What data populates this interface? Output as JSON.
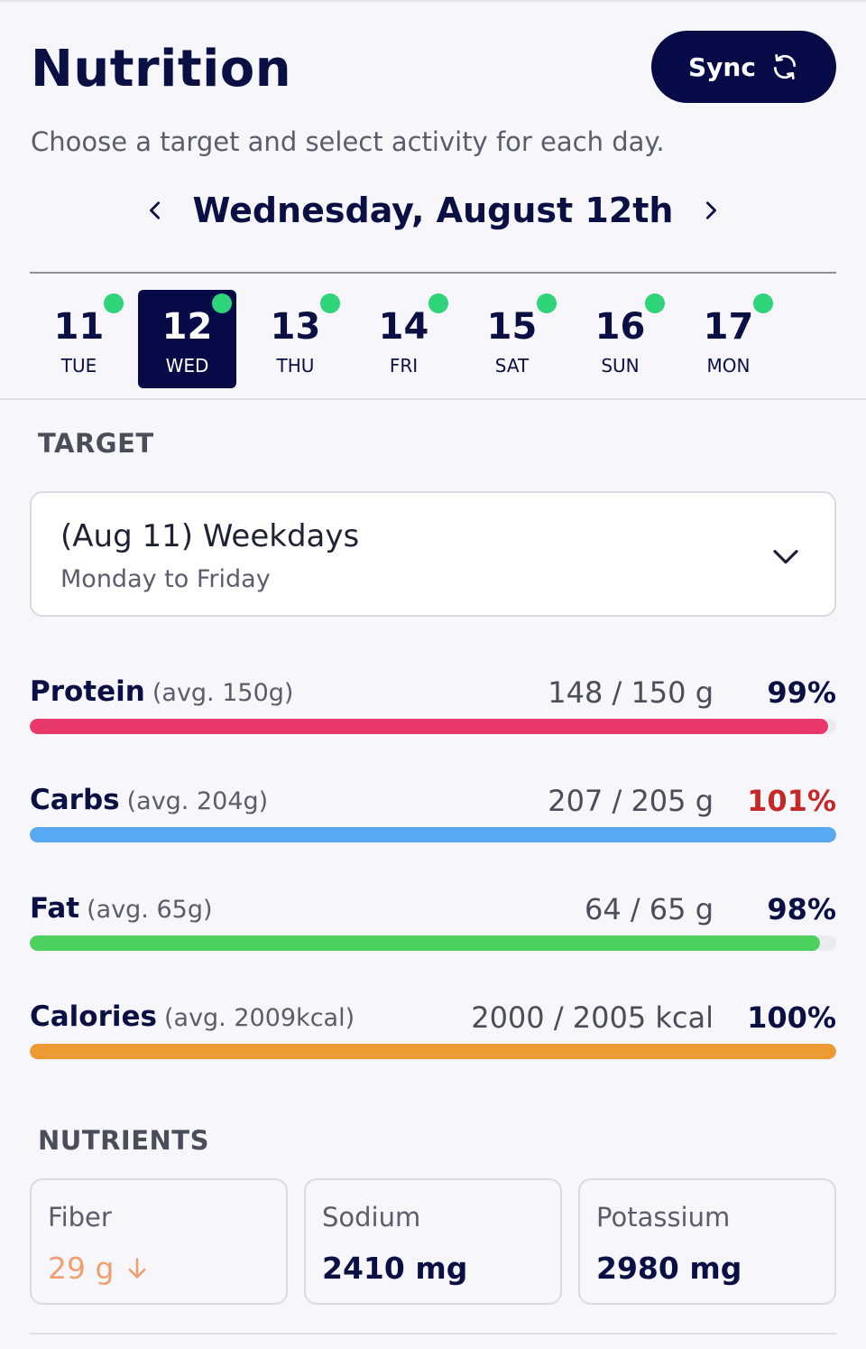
{
  "header": {
    "title": "Nutrition",
    "sync_label": "Sync",
    "subtitle": "Choose a target and select activity for each day."
  },
  "date_nav": {
    "current_date": "Wednesday, August 12th"
  },
  "days": [
    {
      "num": "11",
      "name": "TUE",
      "selected": false,
      "dot": true
    },
    {
      "num": "12",
      "name": "WED",
      "selected": true,
      "dot": true
    },
    {
      "num": "13",
      "name": "THU",
      "selected": false,
      "dot": true
    },
    {
      "num": "14",
      "name": "FRI",
      "selected": false,
      "dot": true
    },
    {
      "num": "15",
      "name": "SAT",
      "selected": false,
      "dot": true
    },
    {
      "num": "16",
      "name": "SUN",
      "selected": false,
      "dot": true
    },
    {
      "num": "17",
      "name": "MON",
      "selected": false,
      "dot": true
    }
  ],
  "target": {
    "section_label": "TARGET",
    "selected_title": "(Aug 11) Weekdays",
    "selected_subtitle": "Monday to Friday"
  },
  "macros": [
    {
      "name": "Protein",
      "avg": "(avg. 150g)",
      "amount": "148 / 150 g",
      "percent": "99%",
      "progress": 0.99,
      "color": "#e8396a",
      "over": false
    },
    {
      "name": "Carbs",
      "avg": "(avg. 204g)",
      "amount": "207 / 205 g",
      "percent": "101%",
      "progress": 1.0,
      "color": "#58a8f2",
      "over": true
    },
    {
      "name": "Fat",
      "avg": "(avg. 65g)",
      "amount": "64 / 65 g",
      "percent": "98%",
      "progress": 0.98,
      "color": "#4cd15e",
      "over": false
    },
    {
      "name": "Calories",
      "avg": "(avg. 2009kcal)",
      "amount": "2000 / 2005 kcal",
      "percent": "100%",
      "progress": 1.0,
      "color": "#ec9a34",
      "over": false
    }
  ],
  "nutrients": {
    "section_label": "NUTRIENTS",
    "items": [
      {
        "label": "Fiber",
        "value": "29 g",
        "low": true,
        "icon": "arrow-down-icon"
      },
      {
        "label": "Sodium",
        "value": "2410 mg",
        "low": false
      },
      {
        "label": "Potassium",
        "value": "2980 mg",
        "low": false
      }
    ]
  },
  "colors": {
    "primary": "#060b48",
    "dot": "#2ed47a",
    "over": "#c62828",
    "low": "#f0a070"
  }
}
